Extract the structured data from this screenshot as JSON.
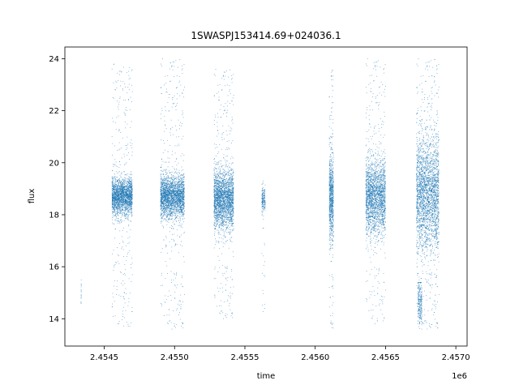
{
  "chart_data": {
    "type": "scatter",
    "title": "1SWASPJ153414.69+024036.1",
    "xlabel": "time",
    "ylabel": "flux",
    "x_offset_label": "1e6",
    "xlim": [
      2454220,
      2457080
    ],
    "ylim": [
      12.95,
      24.45
    ],
    "x_ticks": [
      2454500,
      2455000,
      2455500,
      2456000,
      2456500,
      2457000
    ],
    "x_tick_labels": [
      "2.4545",
      "2.4550",
      "2.4555",
      "2.4560",
      "2.4565",
      "2.4570"
    ],
    "y_ticks": [
      14,
      16,
      18,
      20,
      22,
      24
    ],
    "y_tick_labels": [
      "14",
      "16",
      "18",
      "20",
      "22",
      "24"
    ],
    "grid": false,
    "marker_color": "#1f77b4",
    "series": [
      {
        "clusters": [
          {
            "x_start": 2454335,
            "x_end": 2454337,
            "y_center": 15.0,
            "y_spread": 0.35,
            "count": 20,
            "outlier_low": 14.6,
            "outlier_high": 15.6
          },
          {
            "x_start": 2454555,
            "x_end": 2454700,
            "y_center": 18.7,
            "y_spread": 0.35,
            "count": 2400,
            "outlier_low": 13.6,
            "outlier_high": 23.8
          },
          {
            "x_start": 2454900,
            "x_end": 2455070,
            "y_center": 18.7,
            "y_spread": 0.4,
            "count": 2800,
            "outlier_low": 13.6,
            "outlier_high": 24.0
          },
          {
            "x_start": 2455280,
            "x_end": 2455420,
            "y_center": 18.6,
            "y_spread": 0.55,
            "count": 2600,
            "outlier_low": 14.0,
            "outlier_high": 23.6
          },
          {
            "x_start": 2455620,
            "x_end": 2455645,
            "y_center": 18.6,
            "y_spread": 0.25,
            "count": 200,
            "outlier_low": 14.0,
            "outlier_high": 19.3
          },
          {
            "x_start": 2456100,
            "x_end": 2456130,
            "y_center": 18.7,
            "y_spread": 0.8,
            "count": 900,
            "outlier_low": 13.6,
            "outlier_high": 23.6
          },
          {
            "x_start": 2456360,
            "x_end": 2456500,
            "y_center": 18.7,
            "y_spread": 0.7,
            "count": 2400,
            "outlier_low": 13.8,
            "outlier_high": 24.0
          },
          {
            "x_start": 2456720,
            "x_end": 2456880,
            "y_center": 18.8,
            "y_spread": 1.1,
            "count": 3000,
            "outlier_low": 13.6,
            "outlier_high": 24.0
          },
          {
            "x_start": 2456730,
            "x_end": 2456760,
            "y_center": 14.6,
            "y_spread": 0.45,
            "count": 250,
            "outlier_low": 13.6,
            "outlier_high": 15.4
          }
        ]
      }
    ]
  }
}
